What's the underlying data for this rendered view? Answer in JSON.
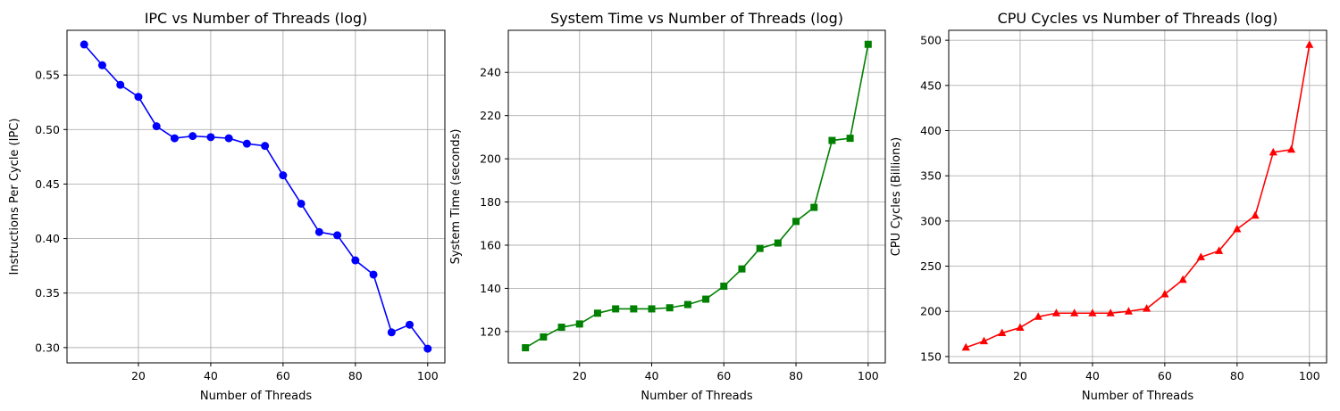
{
  "chart_data": [
    {
      "type": "line",
      "title": "IPC vs Number of Threads (log)",
      "xlabel": "Number of Threads",
      "ylabel": "Instructions Per Cycle (IPC)",
      "xlim": [
        0.25,
        104.75
      ],
      "ylim": [
        0.286,
        0.591
      ],
      "x_ticks": [
        20,
        40,
        60,
        80,
        100
      ],
      "y_ticks": [
        0.3,
        0.35,
        0.4,
        0.45,
        0.5,
        0.55
      ],
      "y_tick_labels": [
        "0.30",
        "0.35",
        "0.40",
        "0.45",
        "0.50",
        "0.55"
      ],
      "grid": true,
      "marker": "circle",
      "color": "#0000ff",
      "x": [
        5,
        10,
        15,
        20,
        25,
        30,
        35,
        40,
        45,
        50,
        55,
        60,
        65,
        70,
        75,
        80,
        85,
        90,
        95,
        100
      ],
      "y": [
        0.578,
        0.559,
        0.541,
        0.53,
        0.503,
        0.492,
        0.494,
        0.493,
        0.492,
        0.487,
        0.485,
        0.458,
        0.432,
        0.406,
        0.403,
        0.38,
        0.367,
        0.314,
        0.321,
        0.299
      ]
    },
    {
      "type": "line",
      "title": "System Time vs Number of Threads (log)",
      "xlabel": "Number of Threads",
      "ylabel": "System Time (seconds)",
      "xlim": [
        0.25,
        104.75
      ],
      "ylim": [
        105.5,
        259.5
      ],
      "x_ticks": [
        20,
        40,
        60,
        80,
        100
      ],
      "y_ticks": [
        120,
        140,
        160,
        180,
        200,
        220,
        240
      ],
      "y_tick_labels": [
        "120",
        "140",
        "160",
        "180",
        "200",
        "220",
        "240"
      ],
      "grid": true,
      "marker": "square",
      "color": "#008000",
      "x": [
        5,
        10,
        15,
        20,
        25,
        30,
        35,
        40,
        45,
        50,
        55,
        60,
        65,
        70,
        75,
        80,
        85,
        90,
        95,
        100
      ],
      "y": [
        112.5,
        117.5,
        122.0,
        123.5,
        128.5,
        130.5,
        130.5,
        130.5,
        131.0,
        132.5,
        135.0,
        141.0,
        149.0,
        158.5,
        161.0,
        171.0,
        177.5,
        208.5,
        209.5,
        253.0
      ]
    },
    {
      "type": "line",
      "title": "CPU Cycles vs Number of Threads (log)",
      "xlabel": "Number of Threads",
      "ylabel": "CPU Cycles (Billions)",
      "xlim": [
        0.25,
        104.75
      ],
      "ylim": [
        143,
        511
      ],
      "x_ticks": [
        20,
        40,
        60,
        80,
        100
      ],
      "y_ticks": [
        150,
        200,
        250,
        300,
        350,
        400,
        450,
        500
      ],
      "y_tick_labels": [
        "150",
        "200",
        "250",
        "300",
        "350",
        "400",
        "450",
        "500"
      ],
      "grid": true,
      "marker": "triangle",
      "color": "#ff0000",
      "x": [
        5,
        10,
        15,
        20,
        25,
        30,
        35,
        40,
        45,
        50,
        55,
        60,
        65,
        70,
        75,
        80,
        85,
        90,
        95,
        100
      ],
      "y": [
        160,
        167,
        176,
        182,
        194,
        198,
        198,
        198,
        198,
        200,
        203,
        219,
        235,
        260,
        267,
        291,
        306,
        376,
        379,
        495
      ]
    }
  ]
}
